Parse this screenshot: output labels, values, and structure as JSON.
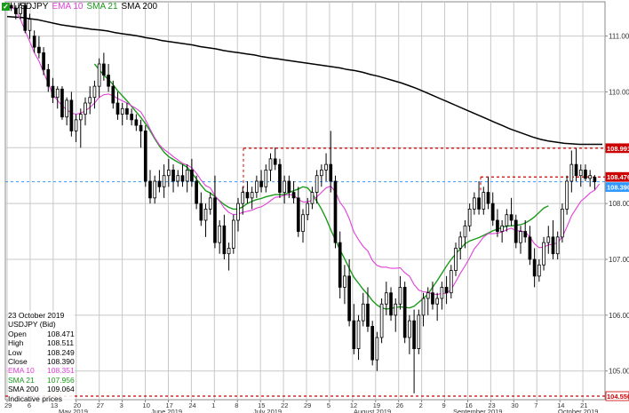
{
  "header": {
    "symbol": "USDJPY",
    "ema_label": "EMA 10",
    "sma21_label": "SMA 21",
    "sma200_label": "SMA 200"
  },
  "info": {
    "date": "23 October 2019",
    "instrument": "USDJPY (Bid)",
    "rows": [
      {
        "k": "Open",
        "v": "108.471"
      },
      {
        "k": "High",
        "v": "108.511"
      },
      {
        "k": "Low",
        "v": "108.249"
      },
      {
        "k": "Close",
        "v": "108.390"
      },
      {
        "k": "EMA 10",
        "v": "108.351"
      },
      {
        "k": "SMA 21",
        "v": "107.956"
      },
      {
        "k": "SMA 200",
        "v": "109.064"
      }
    ],
    "note": "Indicative prices"
  },
  "colors": {
    "ema": "#e040d8",
    "sma21": "#1b9a1b",
    "sma200": "#000000",
    "candle": "#000000",
    "resistance": "#cc0000",
    "current": "#3399ff",
    "grid": "#c8c8c8"
  },
  "chart_data": {
    "type": "candlestick",
    "y_ticks": [
      "111.000",
      "110.000",
      "109.000",
      "108.000",
      "107.000",
      "106.000",
      "105.000"
    ],
    "y_tick_values": [
      111.0,
      110.0,
      109.0,
      108.0,
      107.0,
      106.0,
      105.0
    ],
    "y_range": [
      104.55,
      111.55
    ],
    "x_day_labels": [
      "29",
      "6",
      "13",
      "20",
      "27",
      "3",
      "10",
      "17",
      "24",
      "1",
      "8",
      "15",
      "22",
      "29",
      "5",
      "12",
      "19",
      "26",
      "2",
      "9",
      "16",
      "23",
      "30",
      "7",
      "14",
      "21"
    ],
    "x_month_labels": [
      "May 2019",
      "June 2019",
      "July 2019",
      "August 2019",
      "September 2019",
      "October 2019"
    ],
    "price_tags": [
      {
        "label": "108.991",
        "value": 108.991,
        "kind": "resistance-high"
      },
      {
        "label": "108.476",
        "value": 108.476,
        "kind": "resistance-mid"
      },
      {
        "label": "108.390",
        "value": 108.39,
        "kind": "current"
      },
      {
        "label": "104.550",
        "value": 104.55,
        "kind": "support"
      }
    ],
    "candles_ohlc": [
      [
        111.55,
        111.6,
        111.45,
        111.5
      ],
      [
        111.5,
        111.55,
        111.3,
        111.4
      ],
      [
        111.4,
        111.6,
        111.3,
        111.55
      ],
      [
        111.55,
        111.6,
        111.05,
        111.1
      ],
      [
        111.1,
        111.4,
        110.95,
        111.3
      ],
      [
        111.0,
        111.1,
        110.7,
        110.8
      ],
      [
        110.8,
        111.0,
        110.6,
        110.7
      ],
      [
        110.7,
        110.8,
        110.3,
        110.4
      ],
      [
        110.4,
        110.5,
        110.0,
        110.1
      ],
      [
        110.1,
        110.25,
        109.8,
        109.9
      ],
      [
        109.9,
        110.1,
        109.7,
        110.05
      ],
      [
        110.05,
        110.1,
        109.5,
        109.55
      ],
      [
        109.55,
        109.9,
        109.4,
        109.85
      ],
      [
        109.85,
        110.0,
        109.2,
        109.3
      ],
      [
        109.3,
        109.6,
        109.1,
        109.5
      ],
      [
        109.5,
        109.7,
        109.0,
        109.6
      ],
      [
        109.6,
        109.9,
        109.4,
        109.8
      ],
      [
        109.8,
        110.1,
        109.6,
        109.9
      ],
      [
        109.9,
        110.2,
        109.7,
        110.1
      ],
      [
        110.1,
        110.6,
        109.9,
        110.5
      ],
      [
        110.5,
        110.7,
        110.2,
        110.3
      ],
      [
        110.3,
        110.5,
        110.0,
        110.1
      ],
      [
        110.1,
        110.2,
        109.7,
        109.8
      ],
      [
        109.8,
        110.0,
        109.5,
        109.6
      ],
      [
        109.6,
        109.8,
        109.4,
        109.7
      ],
      [
        109.7,
        109.8,
        109.5,
        109.6
      ],
      [
        109.6,
        109.7,
        109.4,
        109.5
      ],
      [
        109.5,
        109.6,
        109.3,
        109.4
      ],
      [
        109.4,
        109.5,
        109.0,
        109.3
      ],
      [
        109.3,
        109.4,
        108.3,
        108.4
      ],
      [
        108.4,
        108.6,
        108.0,
        108.1
      ],
      [
        108.1,
        108.5,
        108.0,
        108.4
      ],
      [
        108.4,
        108.6,
        108.2,
        108.3
      ],
      [
        108.3,
        108.7,
        108.1,
        108.5
      ],
      [
        108.5,
        108.8,
        108.3,
        108.6
      ],
      [
        108.6,
        108.7,
        108.2,
        108.4
      ],
      [
        108.4,
        108.6,
        108.3,
        108.5
      ],
      [
        108.5,
        108.7,
        108.3,
        108.4
      ],
      [
        108.4,
        108.7,
        108.2,
        108.6
      ],
      [
        108.6,
        108.8,
        108.3,
        108.4
      ],
      [
        108.4,
        108.5,
        107.9,
        108.0
      ],
      [
        108.0,
        108.2,
        107.6,
        107.7
      ],
      [
        107.7,
        108.0,
        107.4,
        107.9
      ],
      [
        107.9,
        108.2,
        107.8,
        108.1
      ],
      [
        108.1,
        108.5,
        107.2,
        107.3
      ],
      [
        107.3,
        107.7,
        107.1,
        107.6
      ],
      [
        107.6,
        107.8,
        107.0,
        107.1
      ],
      [
        107.1,
        107.3,
        106.8,
        107.2
      ],
      [
        107.2,
        107.8,
        107.1,
        107.7
      ],
      [
        107.7,
        108.1,
        107.5,
        108.0
      ],
      [
        108.0,
        108.3,
        107.8,
        108.2
      ],
      [
        108.2,
        108.4,
        108.0,
        108.1
      ],
      [
        108.1,
        108.3,
        107.9,
        108.2
      ],
      [
        108.2,
        108.5,
        108.1,
        108.4
      ],
      [
        108.4,
        108.6,
        108.2,
        108.3
      ],
      [
        108.3,
        108.7,
        108.2,
        108.6
      ],
      [
        108.6,
        108.9,
        108.4,
        108.8
      ],
      [
        108.8,
        109.0,
        108.6,
        108.7
      ],
      [
        108.7,
        108.8,
        108.1,
        108.2
      ],
      [
        108.2,
        108.5,
        108.0,
        108.4
      ],
      [
        108.4,
        108.5,
        108.1,
        108.2
      ],
      [
        108.2,
        108.4,
        108.0,
        108.1
      ],
      [
        108.1,
        108.3,
        107.4,
        107.5
      ],
      [
        107.5,
        107.9,
        107.3,
        107.8
      ],
      [
        107.8,
        108.1,
        107.7,
        108.0
      ],
      [
        108.0,
        108.3,
        107.9,
        108.2
      ],
      [
        108.2,
        108.6,
        108.0,
        108.5
      ],
      [
        108.5,
        108.7,
        108.3,
        108.6
      ],
      [
        108.6,
        108.9,
        108.4,
        108.7
      ],
      [
        108.7,
        109.3,
        108.2,
        108.4
      ],
      [
        108.4,
        108.5,
        107.2,
        107.3
      ],
      [
        107.3,
        107.5,
        106.3,
        106.5
      ],
      [
        106.5,
        106.9,
        106.2,
        106.7
      ],
      [
        106.7,
        107.0,
        105.8,
        105.9
      ],
      [
        105.9,
        106.2,
        105.3,
        105.4
      ],
      [
        105.4,
        106.0,
        105.2,
        105.9
      ],
      [
        105.9,
        106.4,
        105.8,
        106.2
      ],
      [
        106.2,
        106.5,
        105.7,
        105.8
      ],
      [
        105.8,
        105.9,
        105.1,
        105.2
      ],
      [
        105.2,
        105.7,
        105.0,
        105.6
      ],
      [
        105.6,
        106.3,
        105.5,
        106.2
      ],
      [
        106.2,
        106.6,
        106.0,
        106.4
      ],
      [
        106.4,
        106.5,
        105.9,
        106.0
      ],
      [
        106.0,
        106.3,
        105.7,
        106.2
      ],
      [
        106.2,
        106.7,
        106.1,
        106.5
      ],
      [
        106.5,
        106.6,
        105.5,
        105.6
      ],
      [
        105.6,
        106.0,
        105.3,
        105.9
      ],
      [
        105.9,
        106.1,
        104.6,
        105.4
      ],
      [
        105.4,
        106.1,
        105.3,
        106.0
      ],
      [
        106.0,
        106.4,
        105.8,
        106.3
      ],
      [
        106.3,
        106.5,
        106.0,
        106.4
      ],
      [
        106.4,
        106.6,
        106.1,
        106.2
      ],
      [
        106.2,
        106.4,
        105.9,
        106.3
      ],
      [
        106.3,
        106.6,
        106.1,
        106.5
      ],
      [
        106.5,
        106.7,
        106.2,
        106.4
      ],
      [
        106.4,
        106.9,
        106.3,
        106.8
      ],
      [
        106.8,
        107.3,
        106.7,
        107.2
      ],
      [
        107.2,
        107.5,
        107.0,
        107.4
      ],
      [
        107.4,
        107.7,
        107.2,
        107.6
      ],
      [
        107.6,
        108.0,
        107.5,
        107.9
      ],
      [
        107.9,
        108.2,
        107.8,
        108.1
      ],
      [
        108.1,
        108.4,
        107.8,
        107.9
      ],
      [
        107.9,
        108.3,
        107.8,
        108.2
      ],
      [
        108.2,
        108.48,
        107.9,
        108.0
      ],
      [
        108.0,
        108.2,
        107.6,
        107.7
      ],
      [
        107.7,
        107.9,
        107.4,
        107.5
      ],
      [
        107.5,
        107.7,
        107.3,
        107.6
      ],
      [
        107.6,
        107.9,
        107.5,
        107.8
      ],
      [
        107.8,
        108.1,
        107.6,
        107.7
      ],
      [
        107.7,
        107.8,
        107.2,
        107.3
      ],
      [
        107.3,
        107.6,
        107.1,
        107.5
      ],
      [
        107.5,
        107.7,
        107.3,
        107.4
      ],
      [
        107.4,
        107.6,
        106.9,
        107.0
      ],
      [
        107.0,
        107.2,
        106.5,
        106.7
      ],
      [
        106.7,
        107.0,
        106.6,
        106.9
      ],
      [
        106.9,
        107.4,
        106.8,
        107.3
      ],
      [
        107.3,
        107.6,
        107.1,
        107.4
      ],
      [
        107.4,
        107.7,
        107.0,
        107.1
      ],
      [
        107.1,
        107.5,
        107.0,
        107.4
      ],
      [
        107.4,
        108.0,
        107.3,
        107.9
      ],
      [
        107.9,
        108.5,
        107.8,
        108.4
      ],
      [
        108.4,
        108.95,
        108.2,
        108.7
      ],
      [
        108.7,
        108.99,
        108.4,
        108.5
      ],
      [
        108.5,
        108.7,
        108.3,
        108.6
      ],
      [
        108.6,
        108.7,
        108.4,
        108.45
      ],
      [
        108.45,
        108.6,
        108.3,
        108.5
      ],
      [
        108.47,
        108.51,
        108.25,
        108.39
      ]
    ],
    "ema10": [
      111.55,
      111.45,
      111.3,
      111.1,
      110.9,
      110.7,
      110.55,
      110.35,
      110.15,
      109.95,
      109.85,
      109.75,
      109.68,
      109.62,
      109.6,
      109.62,
      109.66,
      109.72,
      109.8,
      109.9,
      109.95,
      109.96,
      109.93,
      109.88,
      109.84,
      109.8,
      109.75,
      109.7,
      109.64,
      109.5,
      109.33,
      109.18,
      109.05,
      108.97,
      108.91,
      108.84,
      108.78,
      108.72,
      108.69,
      108.64,
      108.54,
      108.42,
      108.32,
      108.28,
      108.14,
      108.04,
      107.92,
      107.84,
      107.8,
      107.81,
      107.84,
      107.86,
      107.88,
      107.92,
      107.94,
      107.99,
      108.05,
      108.11,
      108.12,
      108.15,
      108.16,
      108.15,
      108.07,
      108.03,
      108.03,
      108.06,
      108.12,
      108.2,
      108.28,
      108.31,
      108.21,
      108.02,
      107.91,
      107.73,
      107.49,
      107.35,
      107.23,
      107.15,
      106.98,
      106.89,
      106.86,
      106.86,
      106.84,
      106.84,
      106.85,
      106.76,
      106.7,
      106.55,
      106.45,
      106.42,
      106.41,
      106.38,
      106.37,
      106.39,
      106.39,
      106.46,
      106.6,
      106.75,
      106.88,
      107.03,
      107.19,
      107.29,
      107.4,
      107.46,
      107.46,
      107.47,
      107.49,
      107.53,
      107.56,
      107.51,
      107.51,
      107.49,
      107.4,
      107.28,
      107.21,
      107.22,
      107.26,
      107.27,
      107.3,
      107.4,
      107.58,
      107.78,
      107.91,
      108.04,
      108.11,
      108.19,
      108.24,
      108.35
    ],
    "sma21": [
      null,
      null,
      null,
      null,
      null,
      null,
      null,
      null,
      null,
      null,
      null,
      null,
      null,
      null,
      null,
      null,
      null,
      null,
      110.5,
      110.4,
      110.3,
      110.22,
      110.13,
      110.02,
      109.93,
      109.84,
      109.74,
      109.64,
      109.54,
      109.43,
      109.3,
      109.16,
      109.03,
      108.92,
      108.84,
      108.79,
      108.74,
      108.7,
      108.65,
      108.55,
      108.44,
      108.33,
      108.23,
      108.19,
      108.12,
      108.05,
      107.98,
      107.93,
      107.9,
      107.9,
      107.94,
      108.0,
      108.04,
      108.07,
      108.09,
      108.12,
      108.14,
      108.16,
      108.16,
      108.16,
      108.2,
      108.23,
      108.26,
      108.3,
      108.28,
      108.18,
      108.04,
      107.9,
      107.73,
      107.53,
      107.35,
      107.17,
      107.01,
      106.84,
      106.68,
      106.57,
      106.46,
      106.37,
      106.26,
      106.18,
      106.13,
      106.11,
      106.12,
      106.14,
      106.15,
      106.14,
      106.13,
      106.16,
      106.23,
      106.3,
      106.38,
      106.5,
      106.62,
      106.75,
      106.88,
      107.0,
      107.1,
      107.19,
      107.28,
      107.33,
      107.36,
      107.39,
      107.43,
      107.47,
      107.51,
      107.54,
      107.57,
      107.6,
      107.6,
      107.61,
      107.62,
      107.65,
      107.7,
      107.76,
      107.84,
      107.92,
      107.96
    ],
    "sma200": [
      111.35,
      111.34,
      111.33,
      111.31,
      111.29,
      111.26,
      111.23,
      111.2,
      111.18,
      111.16,
      111.14,
      111.12,
      111.11,
      111.09,
      111.06,
      111.04,
      111.02,
      111.0,
      110.97,
      110.95,
      110.92,
      110.9,
      110.88,
      110.86,
      110.84,
      110.81,
      110.79,
      110.77,
      110.74,
      110.72,
      110.7,
      110.68,
      110.66,
      110.63,
      110.61,
      110.59,
      110.57,
      110.55,
      110.53,
      110.51,
      110.49,
      110.47,
      110.45,
      110.43,
      110.4,
      110.38,
      110.35,
      110.31,
      110.28,
      110.24,
      110.2,
      110.16,
      110.11,
      110.06,
      110.0,
      109.94,
      109.88,
      109.82,
      109.76,
      109.7,
      109.64,
      109.58,
      109.52,
      109.46,
      109.4,
      109.34,
      109.29,
      109.24,
      109.19,
      109.15,
      109.12,
      109.1,
      109.08,
      109.07,
      109.06,
      109.06,
      109.06,
      109.06
    ]
  }
}
